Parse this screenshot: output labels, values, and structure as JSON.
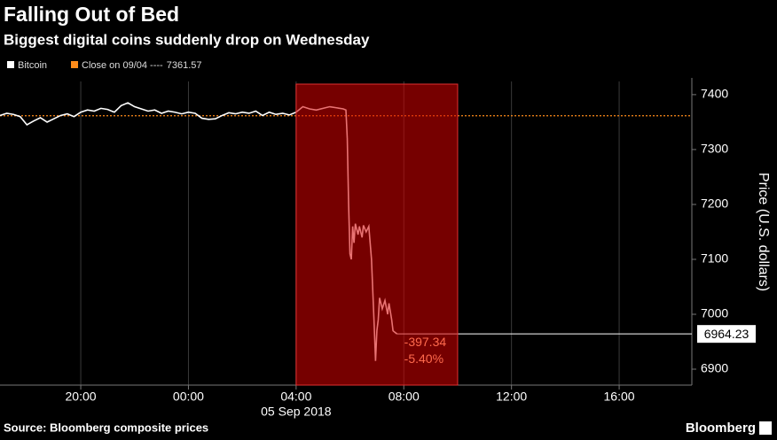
{
  "chart_data": {
    "type": "line",
    "title": "Falling Out of Bed",
    "subtitle": "Biggest digital coins suddenly drop on Wednesday",
    "y_label": "Price (U.S. dollars)",
    "source": "Source: Bloomberg composite prices",
    "brand": "Bloomberg",
    "date_label": "05 Sep 2018",
    "xlim": [
      17,
      42.7
    ],
    "ylim": [
      6871,
      7424
    ],
    "xticks": [
      {
        "value": 20,
        "label": "20:00"
      },
      {
        "value": 24,
        "label": "00:00"
      },
      {
        "value": 28,
        "label": "04:00"
      },
      {
        "value": 32,
        "label": "08:00"
      },
      {
        "value": 36,
        "label": "12:00"
      },
      {
        "value": 40,
        "label": "16:00"
      }
    ],
    "yticks": [
      6900,
      7000,
      7100,
      7200,
      7300,
      7400
    ],
    "grid": true,
    "highlight": [
      28,
      34
    ],
    "annotations": [
      "-397.34",
      "-5.40%"
    ],
    "reference": {
      "name": "Close on 09/04 ----",
      "value": 7361.57,
      "color": "#ff8c1a"
    },
    "x": [
      17,
      17.25,
      17.5,
      17.75,
      18,
      18.25,
      18.5,
      18.75,
      19,
      19.25,
      19.5,
      19.75,
      20,
      20.25,
      20.5,
      20.75,
      21,
      21.25,
      21.5,
      21.75,
      22,
      22.25,
      22.5,
      22.75,
      23,
      23.25,
      23.5,
      23.75,
      24,
      24.25,
      24.5,
      24.75,
      25,
      25.25,
      25.5,
      25.75,
      26,
      26.25,
      26.5,
      26.75,
      27,
      27.25,
      27.5,
      27.75,
      28,
      28.25,
      28.5,
      28.75,
      29,
      29.25,
      29.5,
      29.75,
      29.85,
      29.9,
      29.95,
      30,
      30.05,
      30.1,
      30.15,
      30.2,
      30.3,
      30.35,
      30.45,
      30.5,
      30.6,
      30.7,
      30.75,
      30.8,
      30.85,
      30.9,
      30.95,
      31,
      31.05,
      31.1,
      31.2,
      31.3,
      31.4,
      31.45,
      31.55,
      31.6,
      31.7,
      31.75
    ],
    "series": [
      {
        "name": "Bitcoin",
        "color": "#ffffff",
        "values": [
          7362,
          7366,
          7364,
          7360,
          7345,
          7352,
          7358,
          7350,
          7356,
          7362,
          7365,
          7360,
          7368,
          7372,
          7370,
          7375,
          7373,
          7368,
          7380,
          7385,
          7378,
          7374,
          7370,
          7372,
          7366,
          7370,
          7368,
          7365,
          7368,
          7366,
          7357,
          7355,
          7356,
          7362,
          7367,
          7365,
          7368,
          7366,
          7370,
          7362,
          7368,
          7364,
          7366,
          7363,
          7368,
          7378,
          7374,
          7372,
          7375,
          7378,
          7376,
          7374,
          7372,
          7320,
          7200,
          7110,
          7100,
          7160,
          7130,
          7165,
          7145,
          7160,
          7140,
          7162,
          7150,
          7160,
          7130,
          7100,
          7040,
          6980,
          6915,
          6970,
          6990,
          7030,
          7010,
          7025,
          7000,
          7020,
          6990,
          6970,
          6966,
          6964.23
        ]
      }
    ]
  }
}
